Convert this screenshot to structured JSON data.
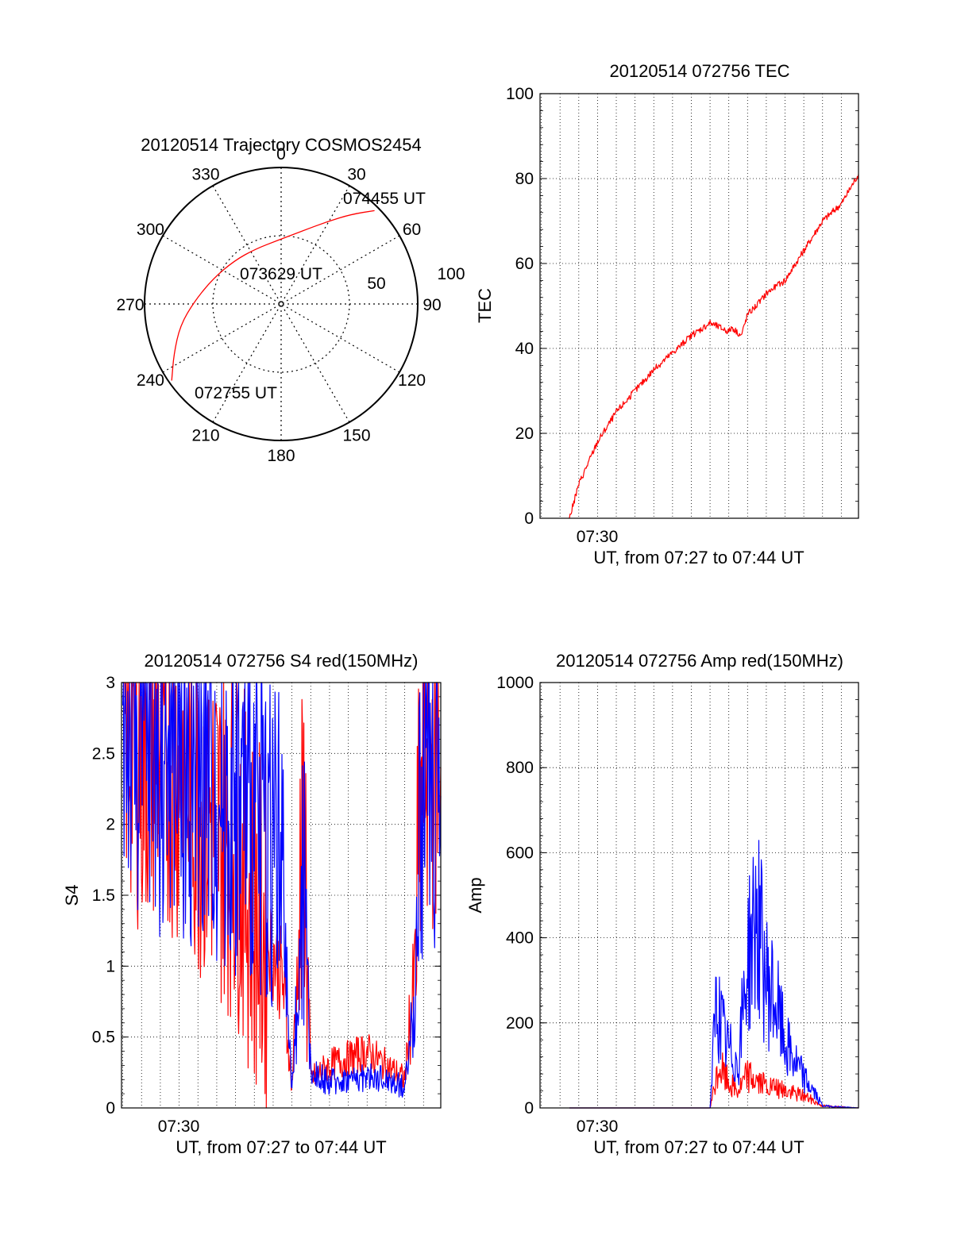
{
  "chart_data": [
    {
      "type": "polar",
      "title": "20120514 Trajectory COSMOS2454",
      "angle_labels": [
        "0",
        "30",
        "60",
        "90",
        "120",
        "150",
        "180",
        "210",
        "240",
        "270",
        "300",
        "330"
      ],
      "radial_labels": [
        "50",
        "100"
      ],
      "series": [
        {
          "color": "#ff0000",
          "points": [
            {
              "azimuth": 235,
              "zenith": 88
            },
            {
              "azimuth": 245,
              "zenith": 78
            },
            {
              "azimuth": 258,
              "zenith": 68
            },
            {
              "azimuth": 272,
              "zenith": 57
            },
            {
              "azimuth": 290,
              "zenith": 48
            },
            {
              "azimuth": 313,
              "zenith": 42
            },
            {
              "azimuth": 335,
              "zenith": 40
            },
            {
              "azimuth": 357,
              "zenith": 42
            },
            {
              "azimuth": 16,
              "zenith": 50
            },
            {
              "azimuth": 29,
              "zenith": 62
            },
            {
              "azimuth": 38,
              "zenith": 75
            },
            {
              "azimuth": 45,
              "zenith": 87
            }
          ]
        }
      ],
      "annotations": [
        "074455 UT",
        "073629 UT",
        "072755 UT"
      ]
    },
    {
      "type": "line",
      "title": "20120514 072756 TEC",
      "ylabel": "TEC",
      "xlabel": "UT, from 07:27 to 07:44 UT",
      "x_tick_label": "07:30",
      "xlim": [
        "07:27:56",
        "07:44:55"
      ],
      "ylim": [
        0,
        100
      ],
      "yticks": [
        "0",
        "20",
        "40",
        "60",
        "80",
        "100"
      ],
      "grid": true,
      "series": [
        {
          "color": "#ff0000",
          "x": [
            "07:29:30",
            "07:30:00",
            "07:31:00",
            "07:32:00",
            "07:33:00",
            "07:34:00",
            "07:35:00",
            "07:36:00",
            "07:37:00",
            "07:38:00",
            "07:38:10",
            "07:38:40",
            "07:39:00",
            "07:39:40",
            "07:40:00",
            "07:41:00",
            "07:42:00",
            "07:43:00",
            "07:44:00",
            "07:44:55"
          ],
          "values": [
            0,
            8,
            18,
            25,
            30,
            35,
            39,
            43,
            46,
            44,
            45,
            43,
            48,
            51,
            53,
            56,
            63,
            70,
            74,
            81
          ]
        }
      ]
    },
    {
      "type": "line",
      "title": "20120514 072756 S4 red(150MHz)",
      "ylabel": "S4",
      "xlabel": "UT, from 07:27 to 07:44 UT",
      "x_tick_label": "07:30",
      "xlim": [
        "07:27:56",
        "07:44:55"
      ],
      "ylim": [
        0,
        3
      ],
      "yticks": [
        "0",
        "0.5",
        "1",
        "1.5",
        "2",
        "2.5",
        "3"
      ],
      "grid": true,
      "series": [
        {
          "color": "#ff0000",
          "x": [
            "07:28:00",
            "07:29:00",
            "07:30:00",
            "07:31:00",
            "07:32:00",
            "07:33:00",
            "07:34:00",
            "07:35:00",
            "07:36:00",
            "07:36:30",
            "07:37:00",
            "07:37:40",
            "07:38:00",
            "07:39:00",
            "07:40:00",
            "07:41:00",
            "07:42:00",
            "07:43:00",
            "07:43:30",
            "07:44:00",
            "07:44:55"
          ],
          "values": [
            2.8,
            2.5,
            2.6,
            2.4,
            2.2,
            2.0,
            1.9,
            1.4,
            1.1,
            0.9,
            0.15,
            2.0,
            0.2,
            0.3,
            0.35,
            0.4,
            0.3,
            0.2,
            0.9,
            2.6,
            2.4
          ]
        },
        {
          "color": "#0000ff",
          "x": [
            "07:28:00",
            "07:29:00",
            "07:30:00",
            "07:31:00",
            "07:32:00",
            "07:33:00",
            "07:34:00",
            "07:35:00",
            "07:36:00",
            "07:36:30",
            "07:37:00",
            "07:37:40",
            "07:38:00",
            "07:39:00",
            "07:40:00",
            "07:41:00",
            "07:42:00",
            "07:43:00",
            "07:43:30",
            "07:44:00",
            "07:44:55"
          ],
          "values": [
            2.7,
            2.6,
            2.5,
            2.5,
            2.4,
            2.3,
            2.2,
            2.1,
            2.0,
            1.4,
            0.12,
            1.6,
            0.25,
            0.18,
            0.2,
            0.22,
            0.2,
            0.15,
            0.7,
            2.5,
            2.2
          ]
        }
      ]
    },
    {
      "type": "line",
      "title": "20120514 072756 Amp red(150MHz)",
      "ylabel": "Amp",
      "xlabel": "UT, from 07:27 to 07:44 UT",
      "x_tick_label": "07:30",
      "xlim": [
        "07:27:56",
        "07:44:55"
      ],
      "ylim": [
        0,
        1000
      ],
      "yticks": [
        "0",
        "200",
        "400",
        "600",
        "800",
        "1000"
      ],
      "grid": true,
      "series": [
        {
          "color": "#ff0000",
          "x": [
            "07:29:30",
            "07:37:00",
            "07:37:30",
            "07:38:00",
            "07:38:30",
            "07:39:00",
            "07:40:00",
            "07:41:00",
            "07:42:00",
            "07:43:00",
            "07:44:55"
          ],
          "values": [
            0,
            0,
            100,
            60,
            40,
            80,
            50,
            40,
            30,
            5,
            0
          ]
        },
        {
          "color": "#0000ff",
          "x": [
            "07:29:30",
            "07:37:00",
            "07:37:20",
            "07:37:50",
            "07:38:30",
            "07:39:00",
            "07:39:30",
            "07:40:00",
            "07:40:30",
            "07:41:00",
            "07:42:00",
            "07:42:30",
            "07:43:00",
            "07:44:55"
          ],
          "values": [
            0,
            0,
            250,
            150,
            100,
            350,
            450,
            300,
            250,
            150,
            70,
            40,
            5,
            0
          ]
        }
      ]
    }
  ]
}
